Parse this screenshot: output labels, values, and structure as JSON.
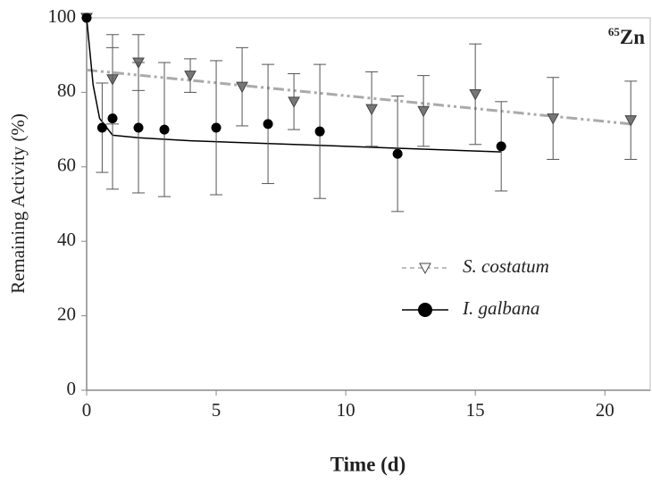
{
  "chart_data": {
    "type": "scatter",
    "xlabel": "Time (d)",
    "ylabel": "Remaining Activity (%)",
    "annotation": {
      "mass": "65",
      "element": "Zn"
    },
    "xlim": [
      0,
      21.75
    ],
    "ylim": [
      0,
      100
    ],
    "xticks": [
      0,
      5,
      10,
      15,
      20
    ],
    "yticks": [
      0,
      20,
      40,
      60,
      80,
      100
    ],
    "legend": "center-right",
    "series": [
      {
        "name": "S. costatum",
        "color": "#777777",
        "marker": "triangle-down",
        "x": [
          0,
          1,
          2,
          4,
          6,
          8,
          11,
          13,
          15,
          18,
          21
        ],
        "values": [
          100,
          83.5,
          88,
          84.5,
          81.5,
          77.5,
          75.5,
          75,
          79.5,
          73,
          72.5
        ],
        "errors": [
          null,
          12,
          7.5,
          4.5,
          10.5,
          7.5,
          10,
          9.5,
          13.5,
          11,
          10.5
        ],
        "fit": {
          "color": "#aaaaaa",
          "dash": "12 4 3 4 3 4",
          "x": [
            0,
            21
          ],
          "values": [
            86,
            71.5
          ]
        }
      },
      {
        "name": "I. galbana",
        "color": "#000000",
        "marker": "circle",
        "x": [
          0,
          0.6,
          1,
          2,
          3,
          5,
          7,
          9,
          12,
          16
        ],
        "values": [
          100,
          70.5,
          73,
          70.5,
          70,
          70.5,
          71.5,
          69.5,
          63.5,
          65.5
        ],
        "errors": [
          null,
          12,
          19,
          17.5,
          18,
          18,
          16,
          18,
          15.5,
          12
        ],
        "fit": {
          "color": "#000000",
          "dash": "none",
          "x": [
            0,
            0.25,
            0.5,
            1,
            2,
            4,
            8,
            12,
            16
          ],
          "values": [
            100,
            82,
            73,
            68.5,
            67.8,
            67,
            66,
            65,
            64
          ]
        }
      }
    ]
  }
}
